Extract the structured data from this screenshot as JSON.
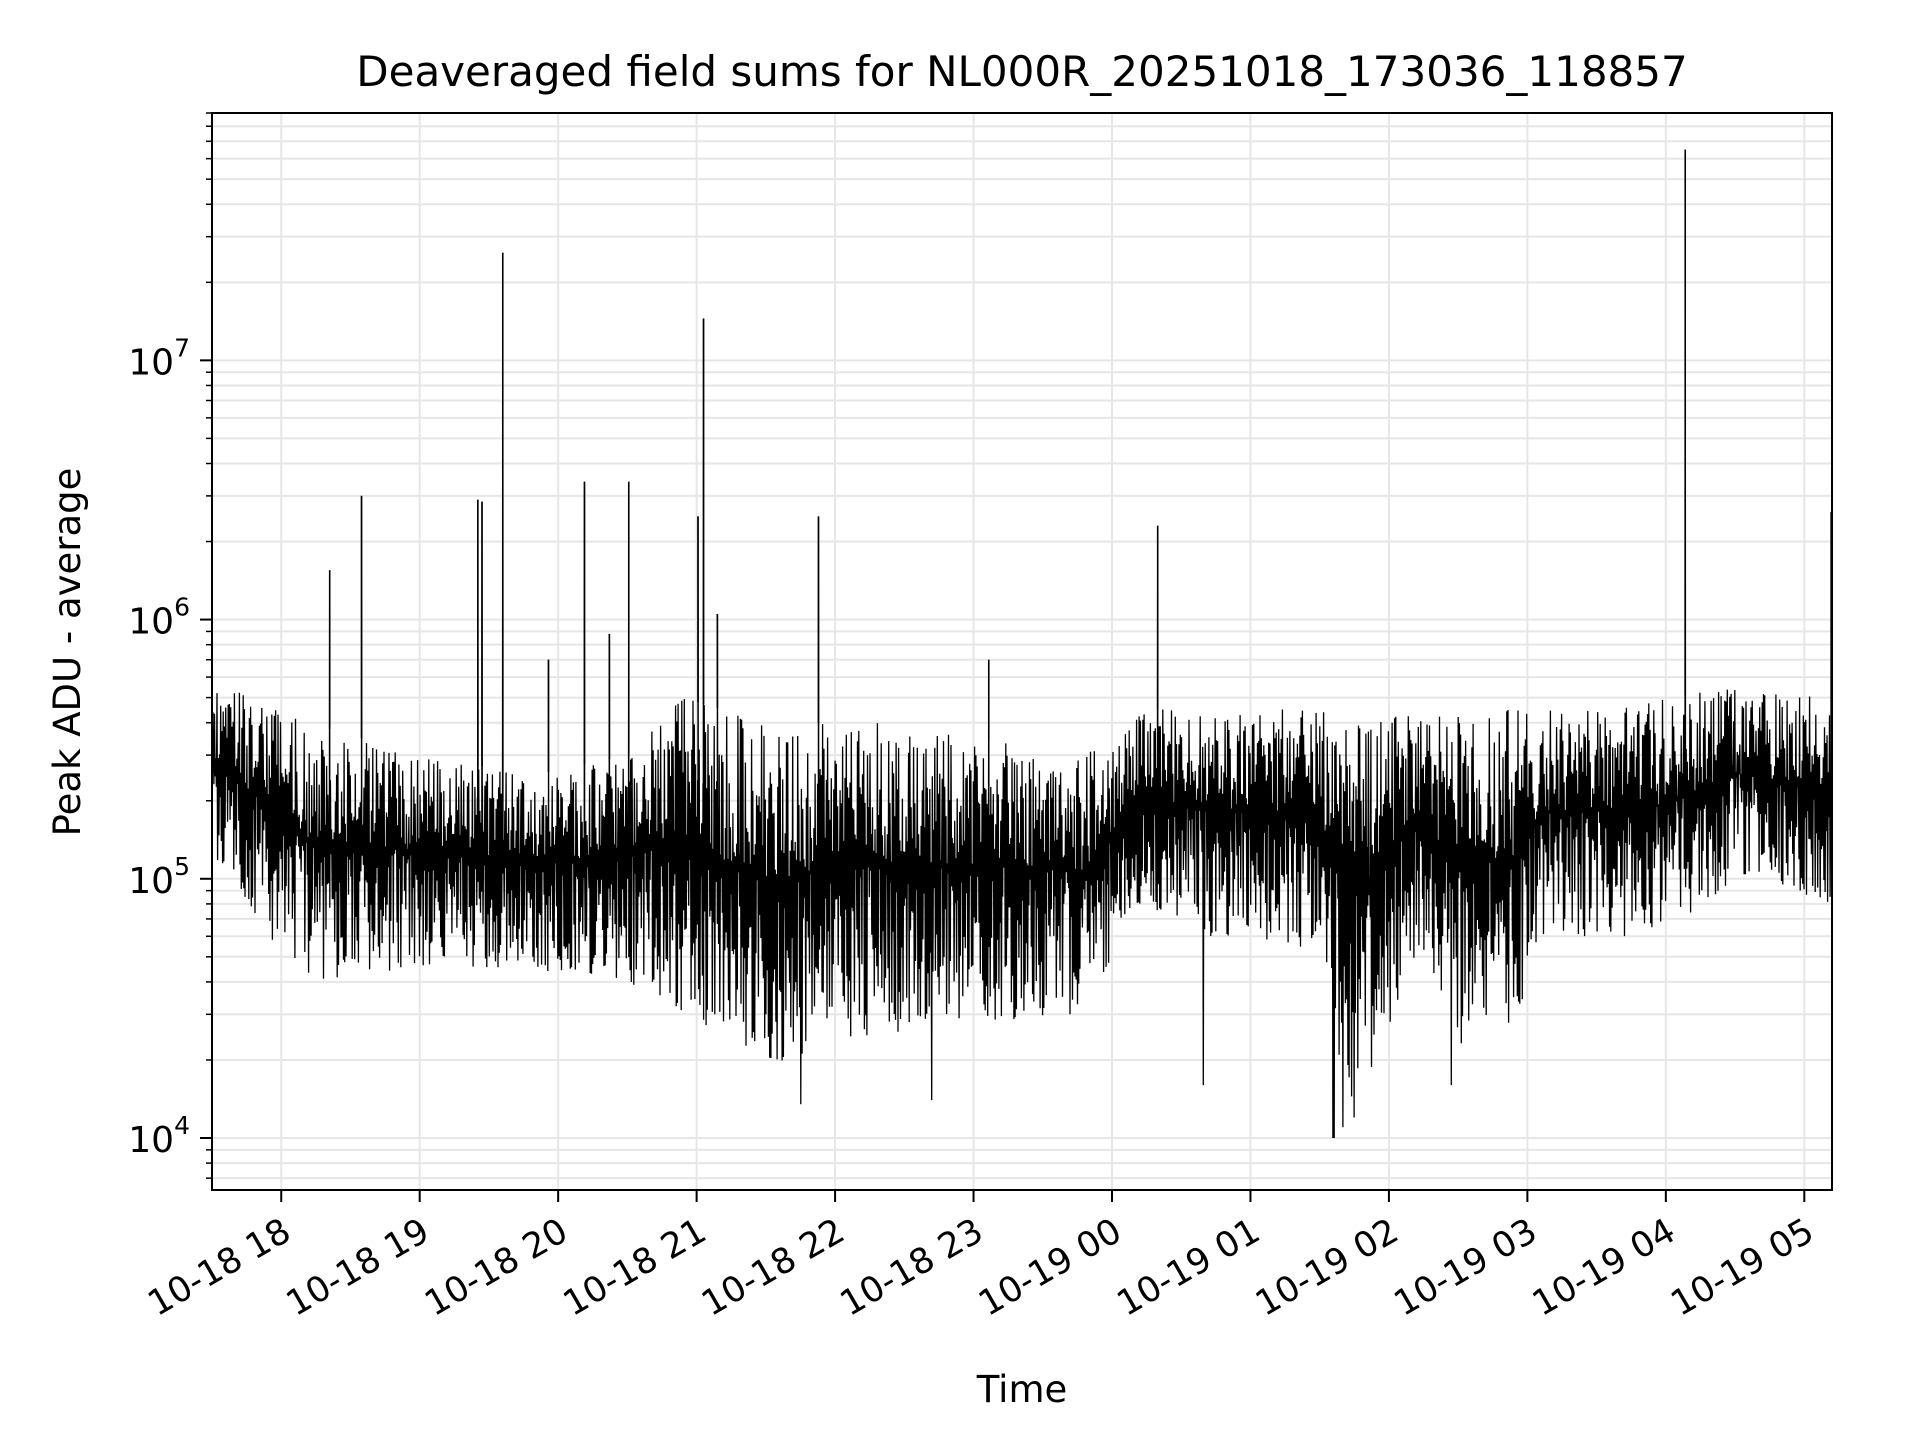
{
  "chart_data": {
    "type": "line",
    "title": "Deaveraged field sums for NL000R_20251018_173036_118857",
    "xlabel": "Time",
    "ylabel": "Peak ADU - average",
    "yscale": "log",
    "ylim": [
      6300,
      90000000
    ],
    "xlim_hours": [
      17.5,
      29.2
    ],
    "grid": true,
    "grid_color": "#e6e6e6",
    "line_color": "#000000",
    "x_ticks": [
      {
        "label": "10-18 18",
        "hour": 18
      },
      {
        "label": "10-18 19",
        "hour": 19
      },
      {
        "label": "10-18 20",
        "hour": 20
      },
      {
        "label": "10-18 21",
        "hour": 21
      },
      {
        "label": "10-18 22",
        "hour": 22
      },
      {
        "label": "10-18 23",
        "hour": 23
      },
      {
        "label": "10-19 00",
        "hour": 24
      },
      {
        "label": "10-19 01",
        "hour": 25
      },
      {
        "label": "10-19 02",
        "hour": 26
      },
      {
        "label": "10-19 03",
        "hour": 27
      },
      {
        "label": "10-19 04",
        "hour": 28
      },
      {
        "label": "10-19 05",
        "hour": 29
      }
    ],
    "y_ticks": [
      {
        "base": "10",
        "exp": "4",
        "value": 10000
      },
      {
        "base": "10",
        "exp": "5",
        "value": 100000
      },
      {
        "base": "10",
        "exp": "6",
        "value": 1000000
      },
      {
        "base": "10",
        "exp": "7",
        "value": 10000000
      }
    ],
    "baseline": [
      {
        "hour": 17.5,
        "hi": 600000,
        "lo": 120000
      },
      {
        "hour": 17.9,
        "hi": 500000,
        "lo": 60000
      },
      {
        "hour": 18.2,
        "hi": 400000,
        "lo": 40000
      },
      {
        "hour": 19.0,
        "hi": 300000,
        "lo": 45000
      },
      {
        "hour": 19.8,
        "hi": 250000,
        "lo": 45000
      },
      {
        "hour": 20.5,
        "hi": 300000,
        "lo": 40000
      },
      {
        "hour": 20.9,
        "hi": 500000,
        "lo": 30000
      },
      {
        "hour": 21.5,
        "hi": 400000,
        "lo": 18000
      },
      {
        "hour": 22.3,
        "hi": 400000,
        "lo": 25000
      },
      {
        "hour": 23.0,
        "hi": 350000,
        "lo": 28000
      },
      {
        "hour": 23.8,
        "hi": 300000,
        "lo": 30000
      },
      {
        "hour": 24.2,
        "hi": 450000,
        "lo": 80000
      },
      {
        "hour": 24.7,
        "hi": 450000,
        "lo": 60000
      },
      {
        "hour": 25.0,
        "hi": 450000,
        "lo": 60000
      },
      {
        "hour": 25.5,
        "hi": 450000,
        "lo": 50000
      },
      {
        "hour": 25.7,
        "hi": 400000,
        "lo": 12000
      },
      {
        "hour": 25.9,
        "hi": 400000,
        "lo": 20000
      },
      {
        "hour": 26.2,
        "hi": 450000,
        "lo": 50000
      },
      {
        "hour": 26.5,
        "hi": 450000,
        "lo": 22000
      },
      {
        "hour": 26.9,
        "hi": 450000,
        "lo": 25000
      },
      {
        "hour": 27.1,
        "hi": 450000,
        "lo": 60000
      },
      {
        "hour": 27.6,
        "hi": 450000,
        "lo": 60000
      },
      {
        "hour": 28.0,
        "hi": 500000,
        "lo": 60000
      },
      {
        "hour": 28.5,
        "hi": 550000,
        "lo": 100000
      },
      {
        "hour": 29.2,
        "hi": 500000,
        "lo": 80000
      }
    ],
    "dips": [
      {
        "hour": 25.6,
        "lo": 10000
      },
      {
        "hour": 25.67,
        "lo": 11000
      },
      {
        "hour": 25.75,
        "lo": 12000
      },
      {
        "hour": 26.45,
        "lo": 16000
      },
      {
        "hour": 24.66,
        "lo": 16000
      },
      {
        "hour": 21.75,
        "lo": 13500
      },
      {
        "hour": 22.7,
        "lo": 14000
      }
    ],
    "spikes": [
      {
        "hour": 18.35,
        "value": 1550000
      },
      {
        "hour": 18.58,
        "value": 3000000
      },
      {
        "hour": 19.42,
        "value": 2900000
      },
      {
        "hour": 19.45,
        "value": 2850000
      },
      {
        "hour": 19.6,
        "value": 26000000
      },
      {
        "hour": 19.93,
        "value": 700000
      },
      {
        "hour": 20.19,
        "value": 3400000
      },
      {
        "hour": 20.37,
        "value": 880000
      },
      {
        "hour": 20.51,
        "value": 3400000
      },
      {
        "hour": 21.01,
        "value": 2500000
      },
      {
        "hour": 21.05,
        "value": 14500000
      },
      {
        "hour": 21.15,
        "value": 1050000
      },
      {
        "hour": 21.88,
        "value": 2500000
      },
      {
        "hour": 23.11,
        "value": 700000
      },
      {
        "hour": 24.33,
        "value": 2300000
      },
      {
        "hour": 28.14,
        "value": 65000000
      },
      {
        "hour": 29.2,
        "value": 2600000
      }
    ]
  }
}
